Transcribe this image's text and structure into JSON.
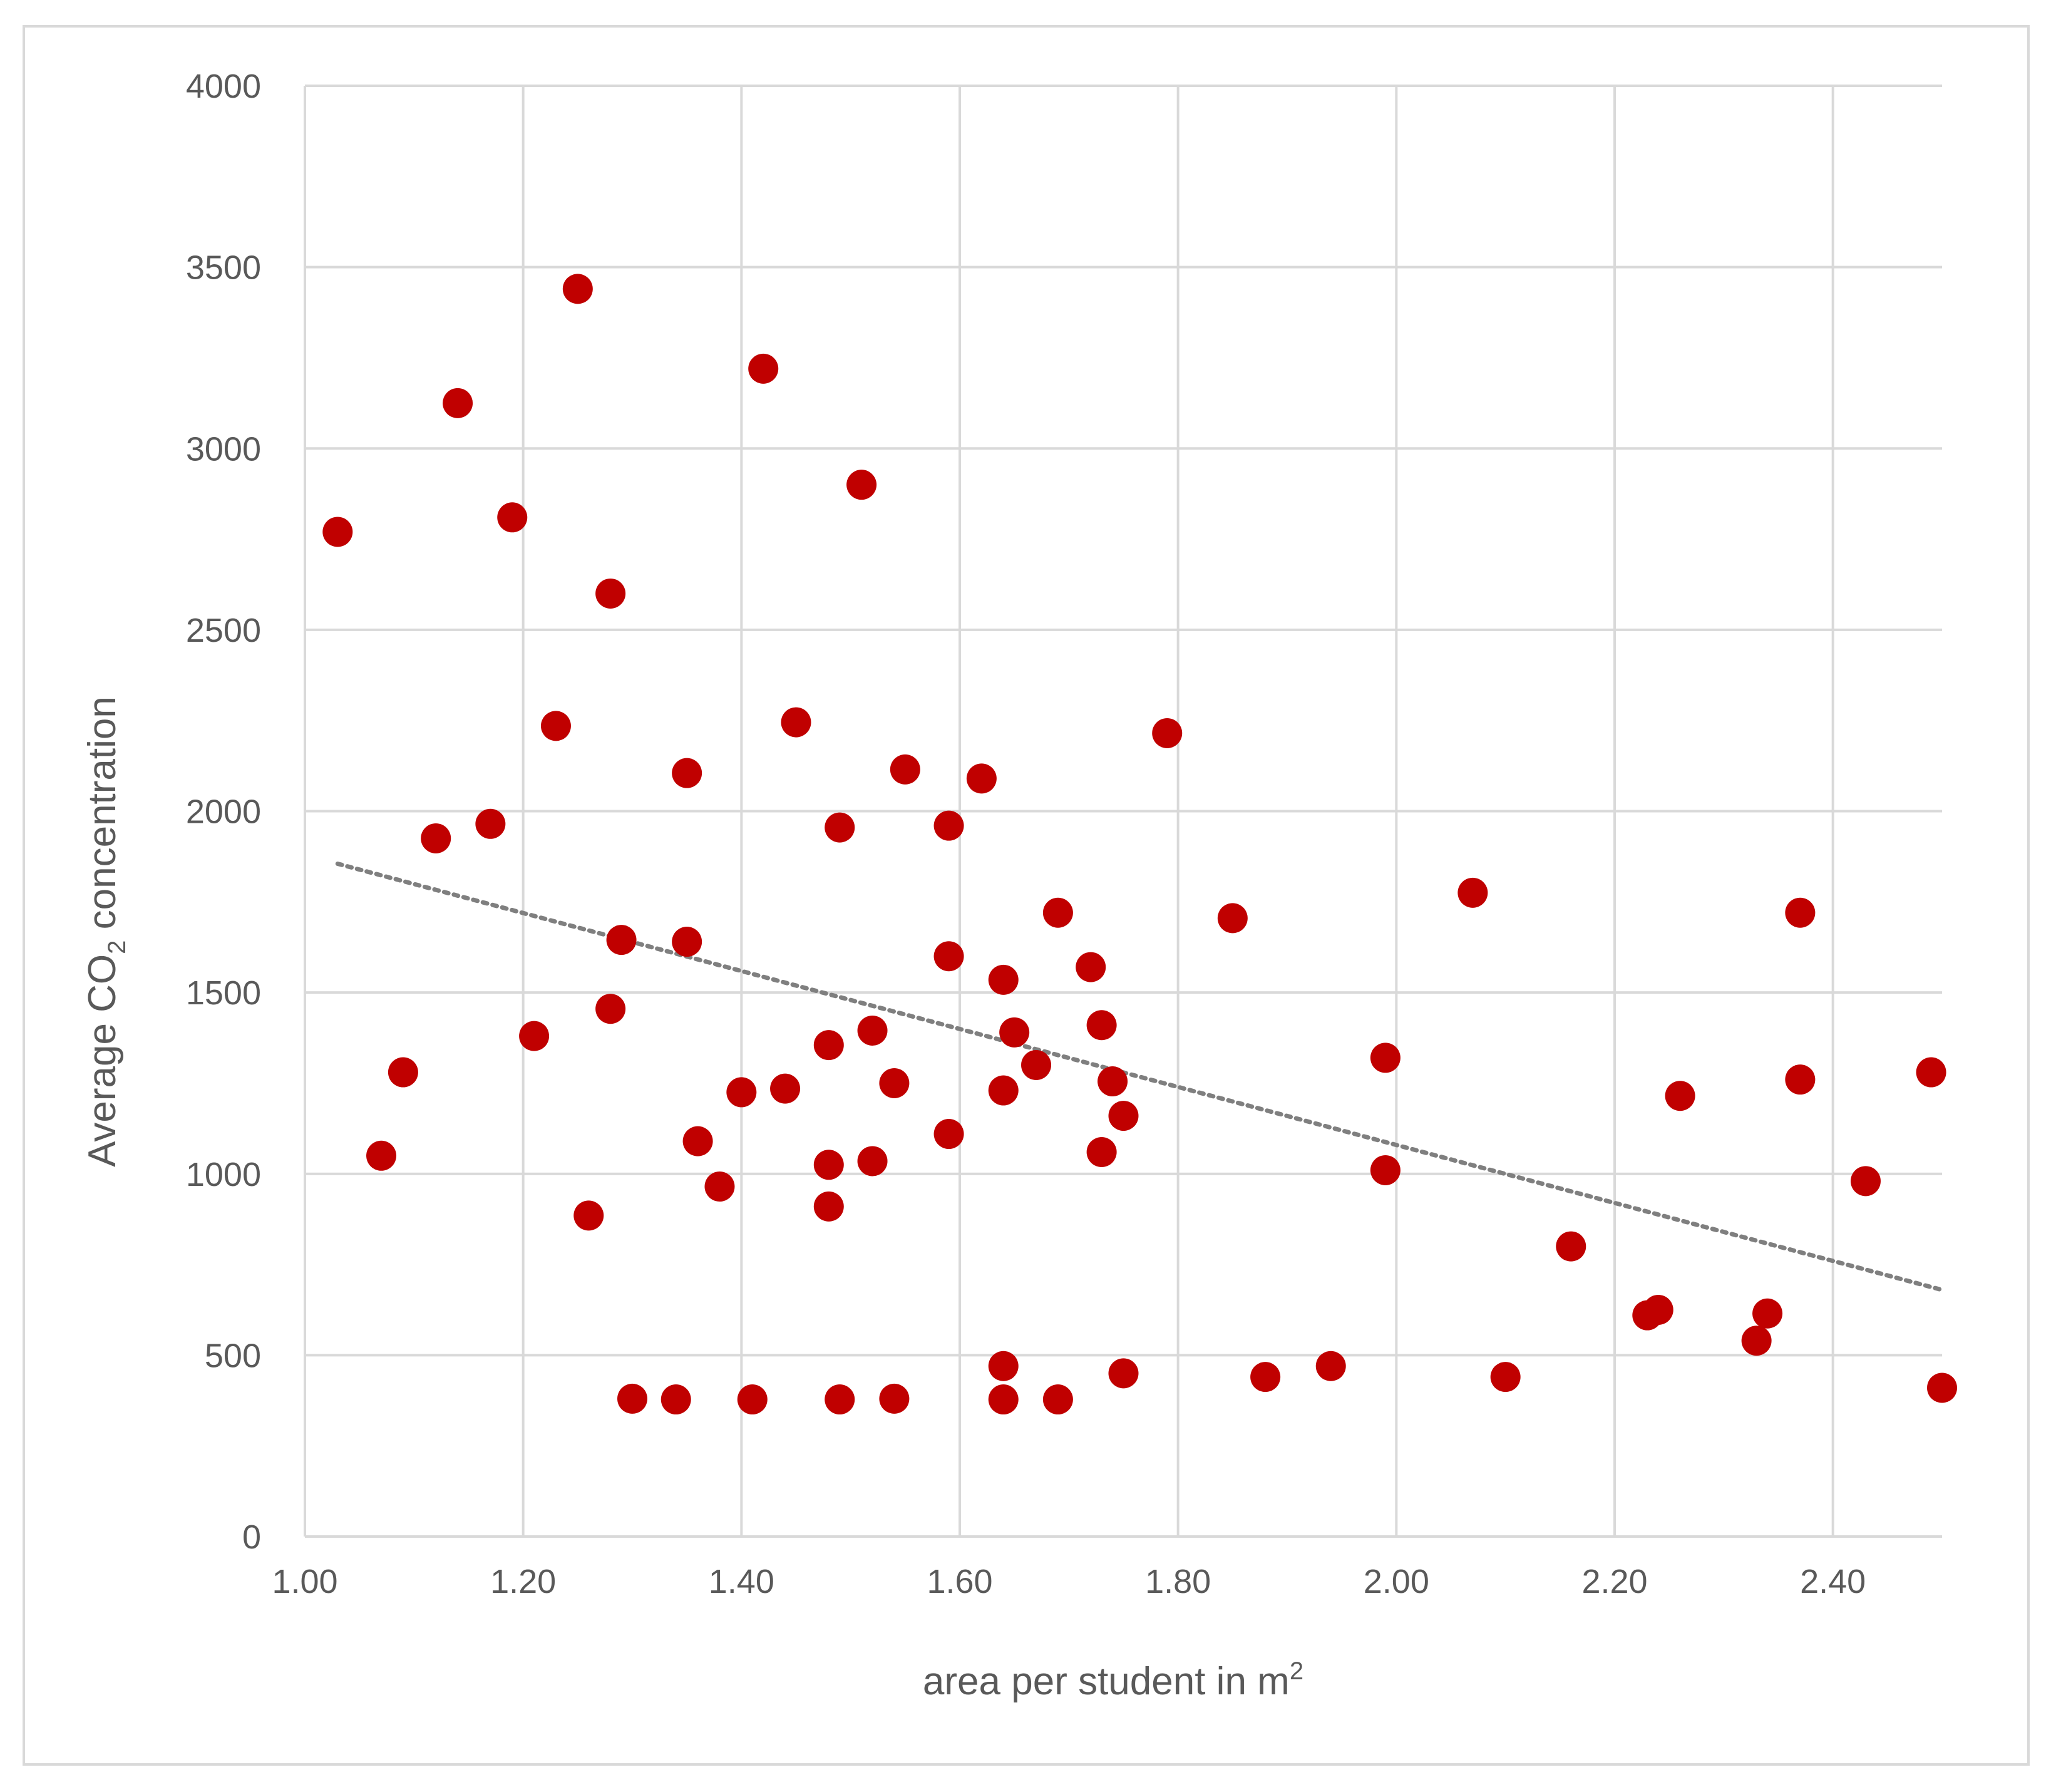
{
  "chart_data": {
    "type": "scatter",
    "title": "",
    "xlabel": "area per student in m",
    "xlabel_superscript": "2",
    "ylabel_prefix": "Average CO",
    "ylabel_subscript": "2",
    "ylabel_suffix": " concentration",
    "xlim": [
      1.0,
      2.5
    ],
    "ylim": [
      0,
      4000
    ],
    "x_ticks": [
      "1.00",
      "1.20",
      "1.40",
      "1.60",
      "1.80",
      "2.00",
      "2.20",
      "2.40"
    ],
    "y_ticks": [
      "0",
      "500",
      "1000",
      "1500",
      "2000",
      "2500",
      "3000",
      "3500",
      "4000"
    ],
    "grid": true,
    "legend": "none",
    "marker_color": "#c00000",
    "trendline": {
      "type": "linear",
      "style": "dotted",
      "color": "#7f7f7f",
      "x": [
        1.03,
        2.5
      ],
      "y": [
        1855,
        680
      ]
    },
    "points": [
      {
        "x": 1.03,
        "y": 2770
      },
      {
        "x": 1.07,
        "y": 1050
      },
      {
        "x": 1.09,
        "y": 1280
      },
      {
        "x": 1.12,
        "y": 1925
      },
      {
        "x": 1.14,
        "y": 3125
      },
      {
        "x": 1.17,
        "y": 1965
      },
      {
        "x": 1.19,
        "y": 2810
      },
      {
        "x": 1.21,
        "y": 1380
      },
      {
        "x": 1.23,
        "y": 2235
      },
      {
        "x": 1.25,
        "y": 3440
      },
      {
        "x": 1.26,
        "y": 885
      },
      {
        "x": 1.28,
        "y": 2600
      },
      {
        "x": 1.28,
        "y": 1455
      },
      {
        "x": 1.29,
        "y": 1645
      },
      {
        "x": 1.3,
        "y": 380
      },
      {
        "x": 1.34,
        "y": 378
      },
      {
        "x": 1.35,
        "y": 2105
      },
      {
        "x": 1.35,
        "y": 1640
      },
      {
        "x": 1.36,
        "y": 1090
      },
      {
        "x": 1.38,
        "y": 965
      },
      {
        "x": 1.4,
        "y": 1225
      },
      {
        "x": 1.41,
        "y": 378
      },
      {
        "x": 1.42,
        "y": 3220
      },
      {
        "x": 1.44,
        "y": 1235
      },
      {
        "x": 1.45,
        "y": 2245
      },
      {
        "x": 1.48,
        "y": 1355
      },
      {
        "x": 1.48,
        "y": 1025
      },
      {
        "x": 1.48,
        "y": 910
      },
      {
        "x": 1.49,
        "y": 1955
      },
      {
        "x": 1.49,
        "y": 378
      },
      {
        "x": 1.51,
        "y": 2900
      },
      {
        "x": 1.52,
        "y": 1395
      },
      {
        "x": 1.52,
        "y": 1035
      },
      {
        "x": 1.54,
        "y": 1250
      },
      {
        "x": 1.54,
        "y": 380
      },
      {
        "x": 1.55,
        "y": 2115
      },
      {
        "x": 1.59,
        "y": 1960
      },
      {
        "x": 1.59,
        "y": 1600
      },
      {
        "x": 1.59,
        "y": 1110
      },
      {
        "x": 1.62,
        "y": 2090
      },
      {
        "x": 1.64,
        "y": 1535
      },
      {
        "x": 1.64,
        "y": 1230
      },
      {
        "x": 1.64,
        "y": 470
      },
      {
        "x": 1.64,
        "y": 378
      },
      {
        "x": 1.65,
        "y": 1390
      },
      {
        "x": 1.67,
        "y": 1300
      },
      {
        "x": 1.69,
        "y": 1720
      },
      {
        "x": 1.69,
        "y": 378
      },
      {
        "x": 1.72,
        "y": 1570
      },
      {
        "x": 1.73,
        "y": 1410
      },
      {
        "x": 1.73,
        "y": 1060
      },
      {
        "x": 1.74,
        "y": 1255
      },
      {
        "x": 1.75,
        "y": 1160
      },
      {
        "x": 1.75,
        "y": 450
      },
      {
        "x": 1.79,
        "y": 2215
      },
      {
        "x": 1.85,
        "y": 1705
      },
      {
        "x": 1.88,
        "y": 440
      },
      {
        "x": 1.94,
        "y": 470
      },
      {
        "x": 1.99,
        "y": 1320
      },
      {
        "x": 1.99,
        "y": 1010
      },
      {
        "x": 2.07,
        "y": 1775
      },
      {
        "x": 2.1,
        "y": 440
      },
      {
        "x": 2.16,
        "y": 800
      },
      {
        "x": 2.23,
        "y": 610
      },
      {
        "x": 2.24,
        "y": 625
      },
      {
        "x": 2.26,
        "y": 1215
      },
      {
        "x": 2.33,
        "y": 540
      },
      {
        "x": 2.34,
        "y": 615
      },
      {
        "x": 2.37,
        "y": 1720
      },
      {
        "x": 2.37,
        "y": 1260
      },
      {
        "x": 2.43,
        "y": 980
      },
      {
        "x": 2.49,
        "y": 1280
      },
      {
        "x": 2.5,
        "y": 410
      }
    ]
  }
}
